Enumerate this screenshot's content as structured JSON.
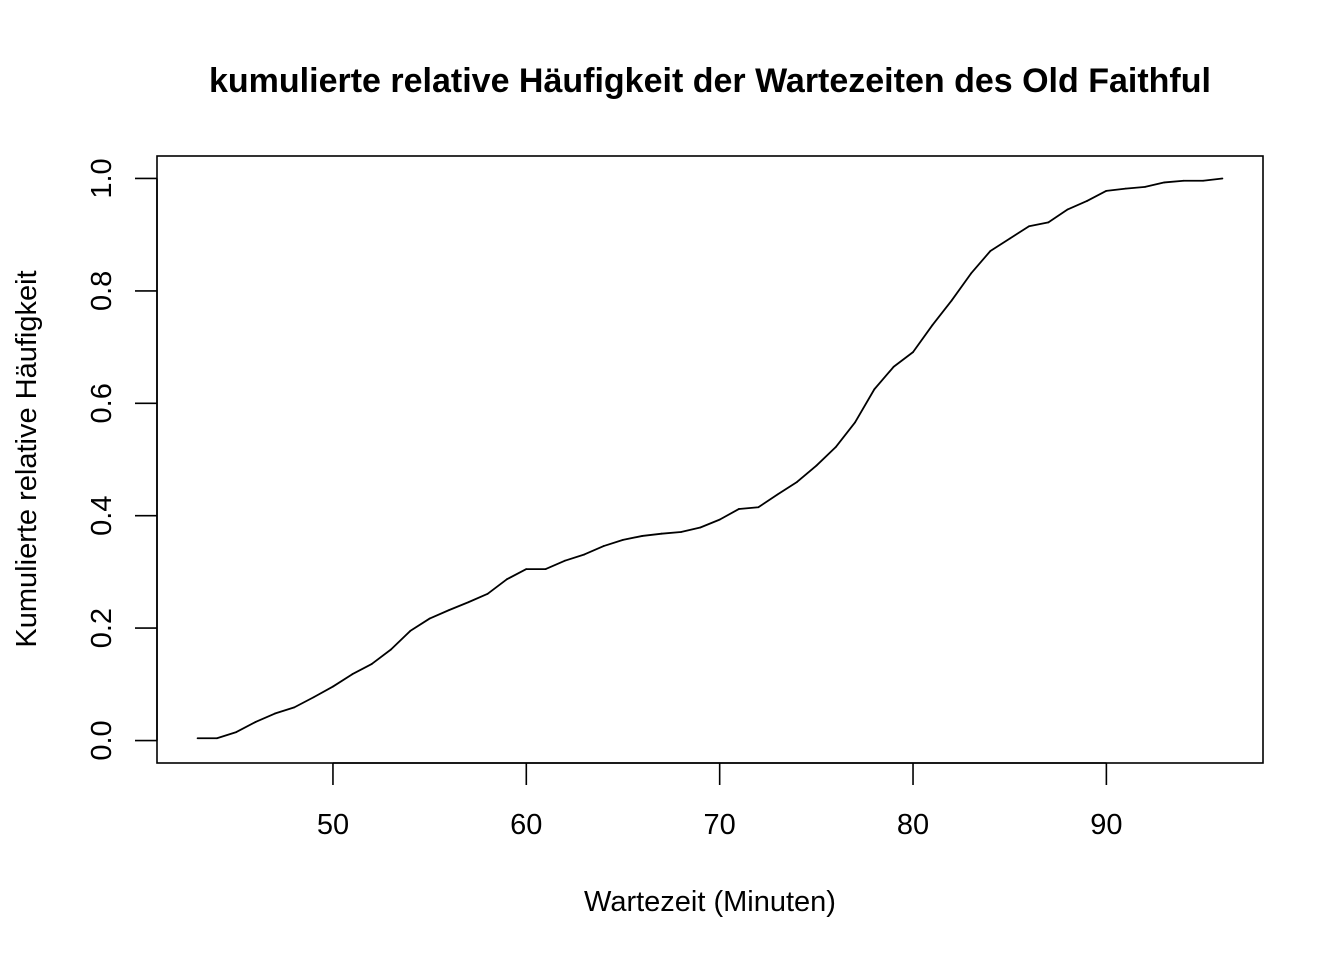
{
  "chart_data": {
    "type": "line",
    "title": "kumulierte relative Häufigkeit der Wartezeiten des Old Faithful",
    "xlabel": "Wartezeit (Minuten)",
    "ylabel": "Kumulierte relative Häufigkeit",
    "xlim": [
      40.9,
      98.1
    ],
    "ylim": [
      -0.04,
      1.04
    ],
    "x_ticks": [
      50,
      60,
      70,
      80,
      90
    ],
    "x_tick_labels": [
      "50",
      "60",
      "70",
      "80",
      "90"
    ],
    "y_ticks": [
      0.0,
      0.2,
      0.4,
      0.6,
      0.8,
      1.0
    ],
    "y_tick_labels": [
      "0.0",
      "0.2",
      "0.4",
      "0.6",
      "0.8",
      "1.0"
    ],
    "grid": false,
    "series": [
      {
        "x": [
          43,
          44,
          45,
          46,
          47,
          48,
          49,
          50,
          51,
          52,
          53,
          54,
          55,
          56,
          57,
          58,
          59,
          60,
          61,
          62,
          63,
          64,
          65,
          66,
          67,
          68,
          69,
          70,
          71,
          72,
          73,
          74,
          75,
          76,
          77,
          78,
          79,
          80,
          81,
          82,
          83,
          84,
          85,
          86,
          87,
          88,
          89,
          90,
          91,
          92,
          93,
          94,
          95,
          96
        ],
        "y": [
          0.004,
          0.004,
          0.015,
          0.033,
          0.048,
          0.059,
          0.077,
          0.096,
          0.118,
          0.136,
          0.162,
          0.195,
          0.217,
          0.232,
          0.246,
          0.261,
          0.287,
          0.305,
          0.305,
          0.32,
          0.331,
          0.346,
          0.357,
          0.364,
          0.368,
          0.371,
          0.379,
          0.393,
          0.412,
          0.415,
          0.438,
          0.46,
          0.489,
          0.522,
          0.566,
          0.625,
          0.665,
          0.691,
          0.739,
          0.783,
          0.831,
          0.871,
          0.893,
          0.915,
          0.922,
          0.945,
          0.96,
          0.978,
          0.982,
          0.985,
          0.993,
          0.996,
          0.996,
          1.0
        ]
      }
    ]
  }
}
